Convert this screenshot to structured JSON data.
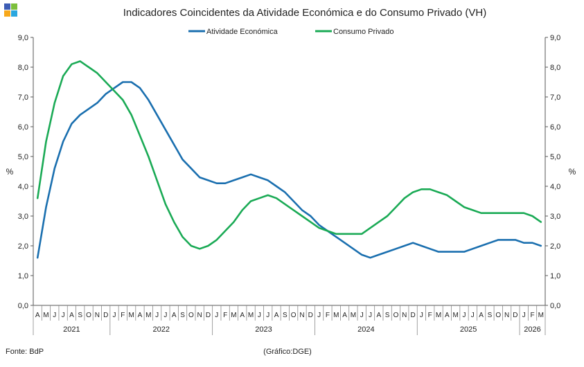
{
  "chart_data": {
    "type": "line",
    "title": "Indicadores Coincidentes da Atividade Económica e do Consumo Privado (VH)",
    "ylabel_left": "%",
    "ylabel_right": "%",
    "ylim": [
      0,
      9
    ],
    "yticks": [
      "0,0",
      "1,0",
      "2,0",
      "3,0",
      "4,0",
      "5,0",
      "6,0",
      "7,0",
      "8,0",
      "9,0"
    ],
    "grid": false,
    "legend_position": "top-center",
    "month_labels": [
      "A",
      "M",
      "J",
      "J",
      "A",
      "S",
      "O",
      "N",
      "D",
      "J",
      "F",
      "M",
      "A",
      "M",
      "J",
      "J",
      "A",
      "S",
      "O",
      "N",
      "D",
      "J",
      "F",
      "M",
      "A",
      "M",
      "J",
      "J",
      "A",
      "S",
      "O",
      "N",
      "D",
      "J",
      "F",
      "M",
      "A",
      "M",
      "J",
      "J",
      "A",
      "S",
      "O",
      "N",
      "D",
      "J",
      "F",
      "M",
      "A",
      "M",
      "J",
      "J",
      "A",
      "S",
      "O",
      "N",
      "D",
      "J",
      "F",
      "M"
    ],
    "years": [
      {
        "label": "2021",
        "months": 9
      },
      {
        "label": "2022",
        "months": 12
      },
      {
        "label": "2023",
        "months": 12
      },
      {
        "label": "2024",
        "months": 12
      },
      {
        "label": "2025",
        "months": 12
      },
      {
        "label": "2026",
        "months": 3
      }
    ],
    "series": [
      {
        "name": "Atividade Económica",
        "color": "#1a6faf",
        "values": [
          1.6,
          3.3,
          4.6,
          5.5,
          6.1,
          6.4,
          6.6,
          6.8,
          7.1,
          7.3,
          7.5,
          7.5,
          7.3,
          6.9,
          6.4,
          5.9,
          5.4,
          4.9,
          4.6,
          4.3,
          4.2,
          4.1,
          4.1,
          4.2,
          4.3,
          4.4,
          4.3,
          4.2,
          4.0,
          3.8,
          3.5,
          3.2,
          3.0,
          2.7,
          2.5,
          2.3,
          2.1,
          1.9,
          1.7,
          1.6,
          1.7,
          1.8,
          1.9,
          2.0,
          2.1,
          2.0,
          1.9,
          1.8,
          1.8,
          1.8,
          1.8,
          1.9,
          2.0,
          2.1,
          2.2,
          2.2,
          2.2,
          2.1,
          2.1,
          2.0
        ]
      },
      {
        "name": "Consumo Privado",
        "color": "#1aaa55",
        "values": [
          3.6,
          5.5,
          6.8,
          7.7,
          8.1,
          8.2,
          8.0,
          7.8,
          7.5,
          7.2,
          6.9,
          6.4,
          5.7,
          5.0,
          4.2,
          3.4,
          2.8,
          2.3,
          2.0,
          1.9,
          2.0,
          2.2,
          2.5,
          2.8,
          3.2,
          3.5,
          3.6,
          3.7,
          3.6,
          3.4,
          3.2,
          3.0,
          2.8,
          2.6,
          2.5,
          2.4,
          2.4,
          2.4,
          2.4,
          2.6,
          2.8,
          3.0,
          3.3,
          3.6,
          3.8,
          3.9,
          3.9,
          3.8,
          3.7,
          3.5,
          3.3,
          3.2,
          3.1,
          3.1,
          3.1,
          3.1,
          3.1,
          3.1,
          3.0,
          2.8
        ]
      }
    ]
  },
  "footer": {
    "source": "Fonte: BdP",
    "credit": "(Gráfico:DGE)"
  },
  "logo": {
    "colors": [
      "#3d5db5",
      "#7cbf3c",
      "#f7a81b",
      "#2aa7df"
    ]
  }
}
